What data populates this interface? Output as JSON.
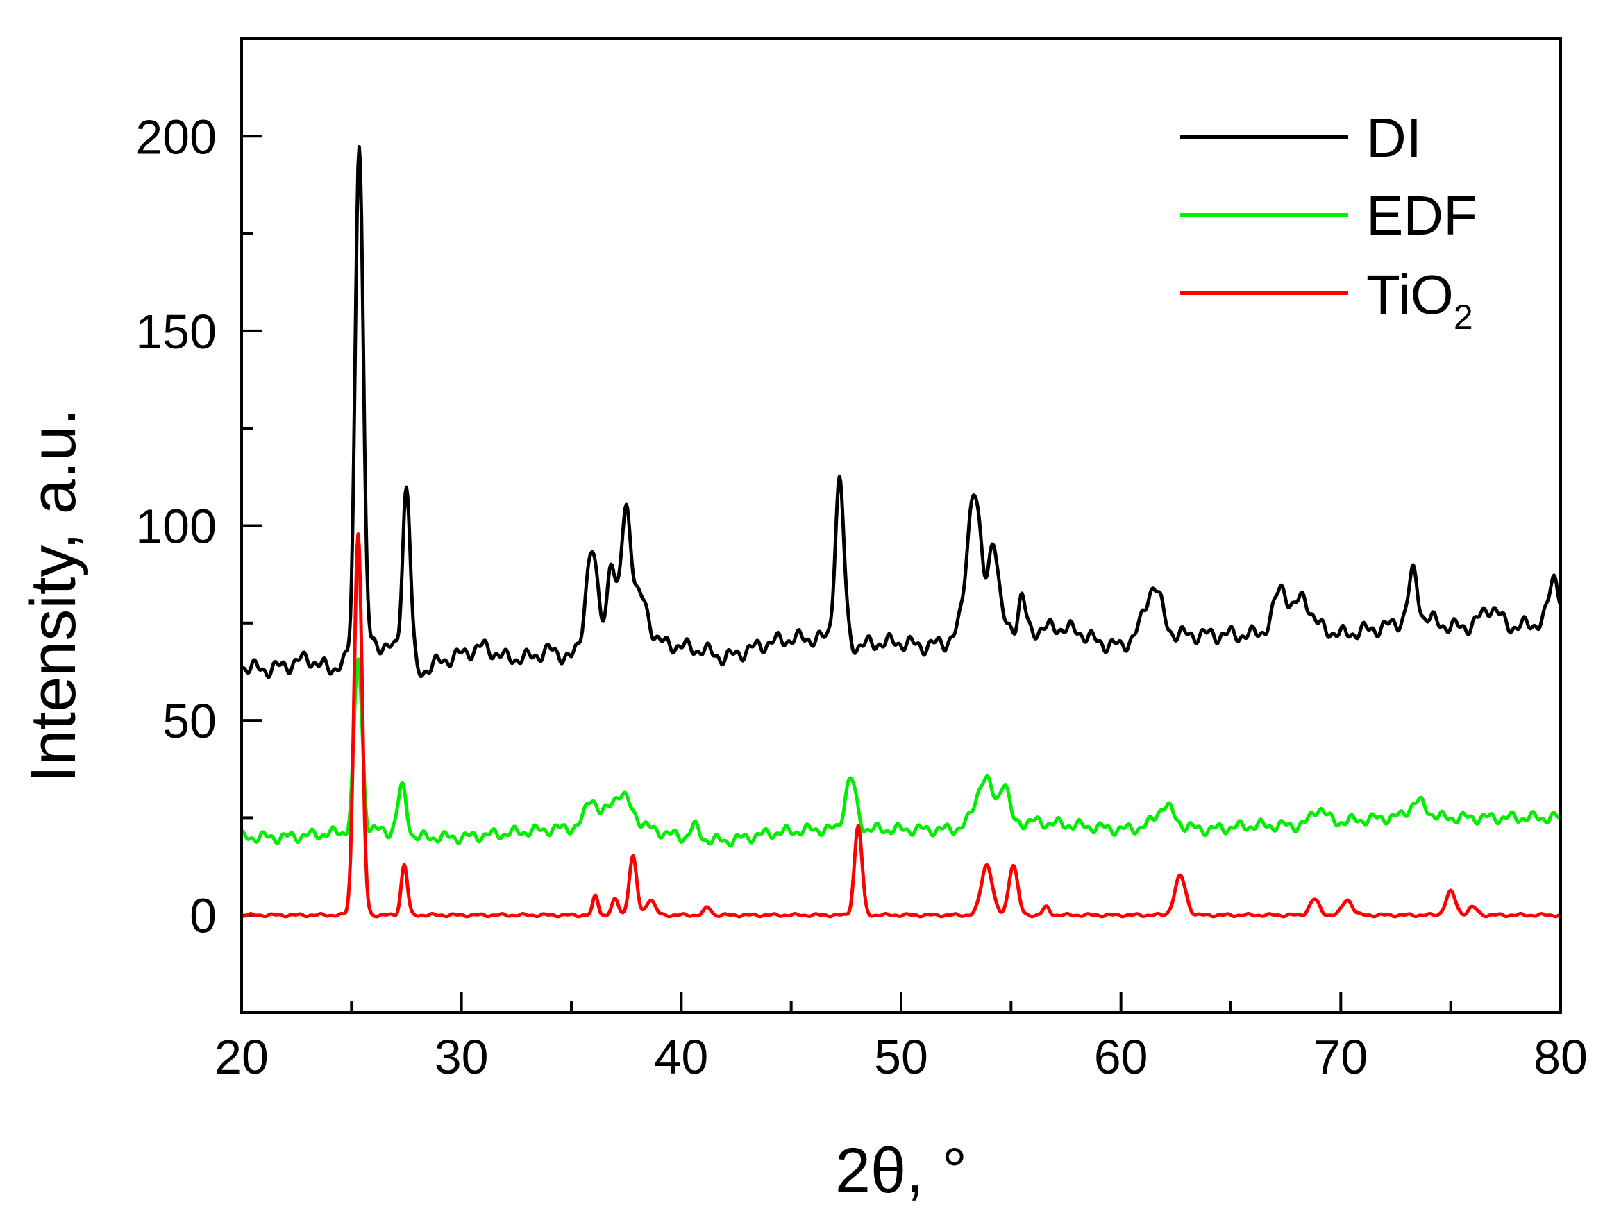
{
  "chart_data": {
    "type": "line",
    "title": "",
    "xlabel": "2θ, °",
    "ylabel": "Intensity, a.u.",
    "xlim": [
      20,
      80
    ],
    "ylim": [
      -25,
      225
    ],
    "x_ticks": [
      20,
      30,
      40,
      50,
      60,
      70,
      80
    ],
    "y_ticks": [
      0,
      50,
      100,
      150,
      200
    ],
    "grid": false,
    "legend_position": "top-right",
    "colors": {
      "DI": "#000000",
      "EDF": "#00ee00",
      "TiO2": "#ff0000"
    },
    "series": [
      {
        "name": "DI",
        "legend_text": "DI",
        "color": "#000000",
        "baseline": [
          [
            20,
            64
          ],
          [
            21,
            63
          ],
          [
            22,
            64
          ],
          [
            23,
            66
          ],
          [
            24,
            63
          ],
          [
            25,
            66
          ],
          [
            26,
            70
          ],
          [
            27,
            68
          ],
          [
            28,
            62
          ],
          [
            29,
            65
          ],
          [
            30,
            67
          ],
          [
            31,
            69
          ],
          [
            32,
            66
          ],
          [
            33,
            66
          ],
          [
            34,
            68
          ],
          [
            35,
            66
          ],
          [
            36,
            72
          ],
          [
            37,
            76
          ],
          [
            38,
            74
          ],
          [
            39,
            70
          ],
          [
            40,
            69
          ],
          [
            41,
            68
          ],
          [
            42,
            66
          ],
          [
            43,
            68
          ],
          [
            44,
            70
          ],
          [
            45,
            71
          ],
          [
            46,
            71
          ],
          [
            47,
            71
          ],
          [
            48,
            69
          ],
          [
            49,
            70
          ],
          [
            50,
            70
          ],
          [
            51,
            69
          ],
          [
            52,
            70
          ],
          [
            53,
            74
          ],
          [
            54,
            77
          ],
          [
            55,
            74
          ],
          [
            56,
            73
          ],
          [
            57,
            74
          ],
          [
            58,
            73
          ],
          [
            59,
            70
          ],
          [
            60,
            69
          ],
          [
            61,
            73
          ],
          [
            62,
            72
          ],
          [
            63,
            72
          ],
          [
            64,
            72
          ],
          [
            65,
            72
          ],
          [
            66,
            72
          ],
          [
            67,
            74
          ],
          [
            68,
            75
          ],
          [
            69,
            74
          ],
          [
            70,
            72
          ],
          [
            71,
            73
          ],
          [
            72,
            74
          ],
          [
            73,
            76
          ],
          [
            74,
            76
          ],
          [
            75,
            74
          ],
          [
            76,
            74
          ],
          [
            77,
            74
          ],
          [
            78,
            74
          ],
          [
            79,
            75
          ],
          [
            80,
            78
          ]
        ],
        "peaks": [
          [
            25.35,
            132,
            0.18
          ],
          [
            27.5,
            45,
            0.18
          ],
          [
            35.9,
            22,
            0.25
          ],
          [
            36.8,
            16,
            0.15
          ],
          [
            37.5,
            30,
            0.22
          ],
          [
            38.2,
            8,
            0.3
          ],
          [
            47.2,
            41,
            0.2
          ],
          [
            53.3,
            34,
            0.3
          ],
          [
            54.2,
            20,
            0.2
          ],
          [
            55.5,
            8,
            0.15
          ],
          [
            61.5,
            12,
            0.35
          ],
          [
            67.3,
            10,
            0.3
          ],
          [
            68.3,
            7,
            0.3
          ],
          [
            73.3,
            12,
            0.2
          ],
          [
            76.8,
            5,
            0.4
          ],
          [
            79.7,
            10,
            0.2
          ]
        ],
        "noise": 2.3
      },
      {
        "name": "EDF",
        "legend_text": "EDF",
        "color": "#00ee00",
        "baseline": [
          [
            20,
            20
          ],
          [
            22,
            20
          ],
          [
            24,
            21
          ],
          [
            26,
            22
          ],
          [
            28,
            20
          ],
          [
            30,
            20
          ],
          [
            32,
            21
          ],
          [
            34,
            22
          ],
          [
            36,
            23
          ],
          [
            38,
            23
          ],
          [
            40,
            20
          ],
          [
            42,
            19
          ],
          [
            44,
            21
          ],
          [
            46,
            22
          ],
          [
            48,
            22
          ],
          [
            50,
            22
          ],
          [
            52,
            22
          ],
          [
            54,
            23
          ],
          [
            56,
            24
          ],
          [
            58,
            23
          ],
          [
            60,
            22
          ],
          [
            62,
            23
          ],
          [
            64,
            22
          ],
          [
            66,
            23
          ],
          [
            68,
            23
          ],
          [
            70,
            24
          ],
          [
            72,
            25
          ],
          [
            74,
            25
          ],
          [
            76,
            25
          ],
          [
            78,
            25
          ],
          [
            80,
            25
          ]
        ],
        "peaks": [
          [
            25.3,
            44,
            0.18
          ],
          [
            27.3,
            12,
            0.2
          ],
          [
            35.9,
            7,
            0.25
          ],
          [
            37.2,
            8,
            0.5
          ],
          [
            40.6,
            3,
            0.2
          ],
          [
            47.7,
            13,
            0.25
          ],
          [
            53.8,
            12,
            0.4
          ],
          [
            54.7,
            10,
            0.2
          ],
          [
            62.0,
            5,
            0.4
          ],
          [
            69.0,
            4,
            0.3
          ],
          [
            73.5,
            4,
            0.4
          ]
        ],
        "noise": 1.6
      },
      {
        "name": "TiO2",
        "legend_text": "TiO",
        "legend_subscript": "2",
        "color": "#ff0000",
        "baseline": [
          [
            20,
            0
          ],
          [
            80,
            0
          ]
        ],
        "peaks": [
          [
            25.3,
            98,
            0.18
          ],
          [
            27.4,
            13,
            0.14
          ],
          [
            36.1,
            5,
            0.12
          ],
          [
            37.0,
            4,
            0.15
          ],
          [
            37.8,
            15,
            0.17
          ],
          [
            38.6,
            4,
            0.2
          ],
          [
            41.2,
            2,
            0.15
          ],
          [
            48.05,
            23,
            0.17
          ],
          [
            53.9,
            13,
            0.25
          ],
          [
            55.1,
            13,
            0.2
          ],
          [
            56.6,
            2,
            0.15
          ],
          [
            62.7,
            10,
            0.25
          ],
          [
            68.8,
            4,
            0.22
          ],
          [
            70.3,
            4,
            0.22
          ],
          [
            75.0,
            6,
            0.22
          ],
          [
            76.0,
            2,
            0.2
          ]
        ],
        "noise": 0.4
      }
    ]
  }
}
